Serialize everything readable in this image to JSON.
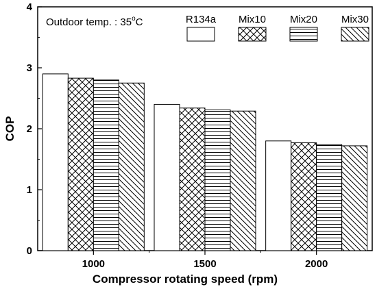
{
  "chart_data": {
    "type": "bar",
    "title": "",
    "annotation": {
      "prefix": "Outdoor temp. : 35",
      "unit_sup": "o",
      "unit": "C"
    },
    "xlabel": "Compressor rotating speed (rpm)",
    "ylabel": "COP",
    "ylim": [
      0,
      4
    ],
    "yticks": [
      "0",
      "1",
      "2",
      "3",
      "4"
    ],
    "categories": [
      "1000",
      "1500",
      "2000"
    ],
    "series": [
      {
        "name": "R134a",
        "pattern": "blank",
        "values": [
          2.9,
          2.4,
          1.8
        ]
      },
      {
        "name": "Mix10",
        "pattern": "crosshatch",
        "values": [
          2.83,
          2.34,
          1.77
        ]
      },
      {
        "name": "Mix20",
        "pattern": "horizontal",
        "values": [
          2.8,
          2.31,
          1.74
        ]
      },
      {
        "name": "Mix30",
        "pattern": "diagonal",
        "values": [
          2.75,
          2.29,
          1.72
        ]
      }
    ],
    "grid": false,
    "legend_position": "top-right"
  }
}
